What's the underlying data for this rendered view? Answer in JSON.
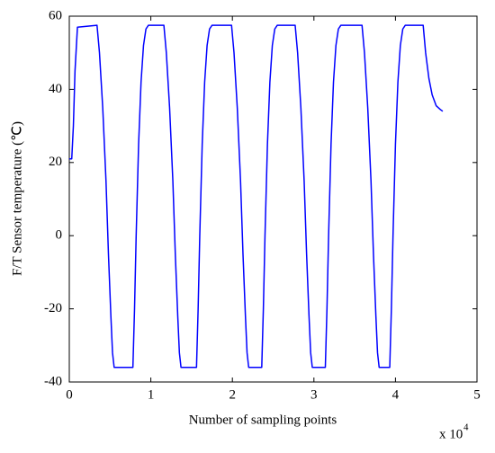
{
  "chart_data": {
    "type": "line",
    "x_label": "Number of sampling points",
    "y_label": "F/T Sensor temperature (℃)",
    "x_scale_label": "x 10",
    "x_scale_exponent": "4",
    "color": "#0000ff",
    "xlim": [
      0,
      5
    ],
    "xticks": [
      0,
      1,
      2,
      3,
      4,
      5
    ],
    "ylim": [
      -40,
      60
    ],
    "yticks": [
      -40,
      -20,
      0,
      20,
      40,
      60
    ],
    "x": [
      0,
      0.03,
      0.05,
      0.07,
      0.1,
      0.34,
      0.37,
      0.41,
      0.45,
      0.48,
      0.51,
      0.53,
      0.55,
      0.78,
      0.8,
      0.82,
      0.85,
      0.88,
      0.91,
      0.94,
      0.97,
      1.16,
      1.19,
      1.23,
      1.27,
      1.3,
      1.33,
      1.35,
      1.37,
      1.56,
      1.58,
      1.6,
      1.63,
      1.66,
      1.69,
      1.72,
      1.75,
      1.99,
      2.02,
      2.06,
      2.1,
      2.13,
      2.16,
      2.18,
      2.2,
      2.36,
      2.38,
      2.4,
      2.43,
      2.46,
      2.49,
      2.52,
      2.55,
      2.77,
      2.8,
      2.84,
      2.88,
      2.91,
      2.94,
      2.96,
      2.98,
      3.14,
      3.16,
      3.18,
      3.21,
      3.24,
      3.27,
      3.3,
      3.33,
      3.59,
      3.62,
      3.66,
      3.7,
      3.73,
      3.76,
      3.78,
      3.8,
      3.93,
      3.95,
      3.97,
      4.0,
      4.03,
      4.06,
      4.09,
      4.12,
      4.34,
      4.37,
      4.41,
      4.45,
      4.5,
      4.55,
      4.58
    ],
    "values": [
      21,
      21,
      30,
      45,
      57,
      57.5,
      50,
      35,
      15,
      -5,
      -22,
      -32,
      -36,
      -36,
      -20,
      0,
      25,
      42,
      52,
      56.5,
      57.5,
      57.5,
      50,
      35,
      15,
      -5,
      -22,
      -32,
      -36,
      -36,
      -20,
      0,
      25,
      42,
      52,
      56.5,
      57.5,
      57.5,
      50,
      35,
      15,
      -5,
      -22,
      -32,
      -36,
      -36,
      -20,
      0,
      25,
      42,
      52,
      56.5,
      57.5,
      57.5,
      50,
      35,
      15,
      -5,
      -22,
      -32,
      -36,
      -36,
      -20,
      0,
      25,
      42,
      52,
      56.5,
      57.5,
      57.5,
      50,
      35,
      15,
      -5,
      -22,
      -32,
      -36,
      -36,
      -20,
      0,
      25,
      42,
      52,
      56.5,
      57.5,
      57.5,
      50,
      43,
      38.5,
      35.5,
      34.5,
      34
    ]
  }
}
